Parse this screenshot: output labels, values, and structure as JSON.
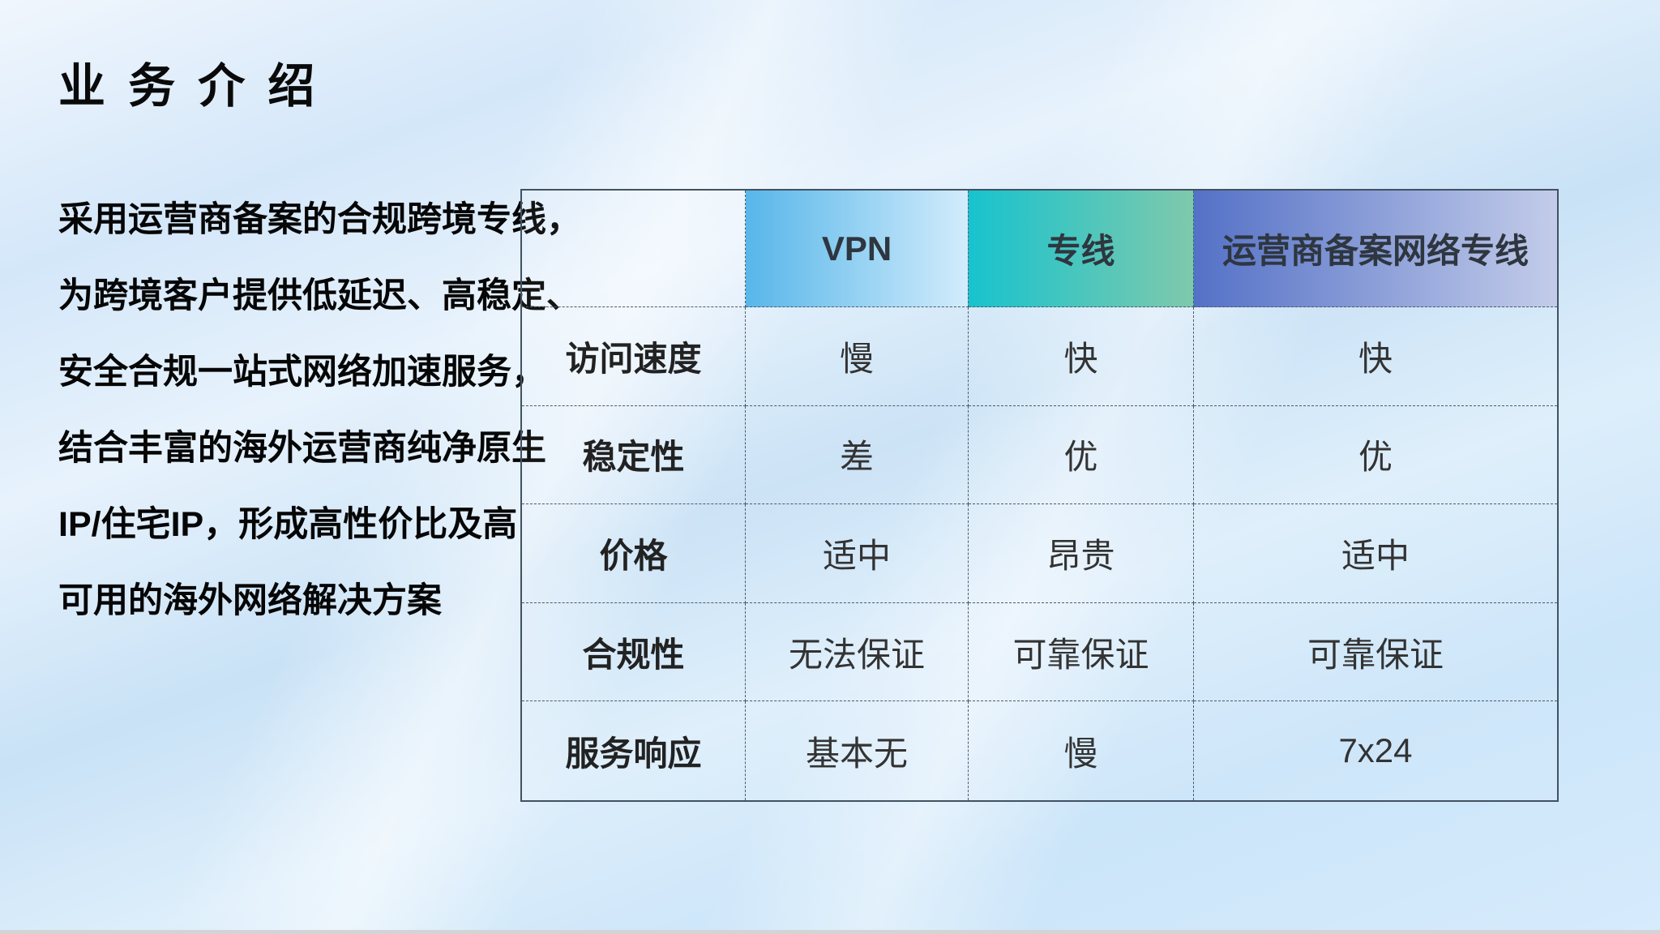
{
  "page": {
    "title": "业 务 介 绍"
  },
  "intro": {
    "lines": [
      "采用运营商备案的合规跨境专线，",
      "为跨境客户提供低延迟、高稳定、",
      "安全合规一站式网络加速服务，",
      "结合丰富的海外运营商纯净原生",
      "IP/住宅IP，形成高性价比及高",
      "可用的海外网络解决方案"
    ]
  },
  "comparison_table": {
    "columns": [
      "",
      "VPN",
      "专线",
      "运营商备案网络专线"
    ],
    "header_gradients": {
      "vpn": [
        "#57b6e9",
        "#d2ecfc"
      ],
      "dedicated_line": [
        "#17c3ce",
        "#7fc9ac"
      ],
      "carrier_line": [
        "#5471c7",
        "#c3cce9"
      ]
    },
    "border_colors": {
      "outer": "#415262",
      "inner_dashed": "#4d5a68"
    },
    "rows": [
      {
        "label": "访问速度",
        "values": [
          "慢",
          "快",
          "快"
        ]
      },
      {
        "label": "稳定性",
        "values": [
          "差",
          "优",
          "优"
        ]
      },
      {
        "label": "价格",
        "values": [
          "适中",
          "昂贵",
          "适中"
        ]
      },
      {
        "label": "合规性",
        "values": [
          "无法保证",
          "可靠保证",
          "可靠保证"
        ]
      },
      {
        "label": "服务响应",
        "values": [
          "基本无",
          "慢",
          "7x24"
        ]
      }
    ]
  }
}
